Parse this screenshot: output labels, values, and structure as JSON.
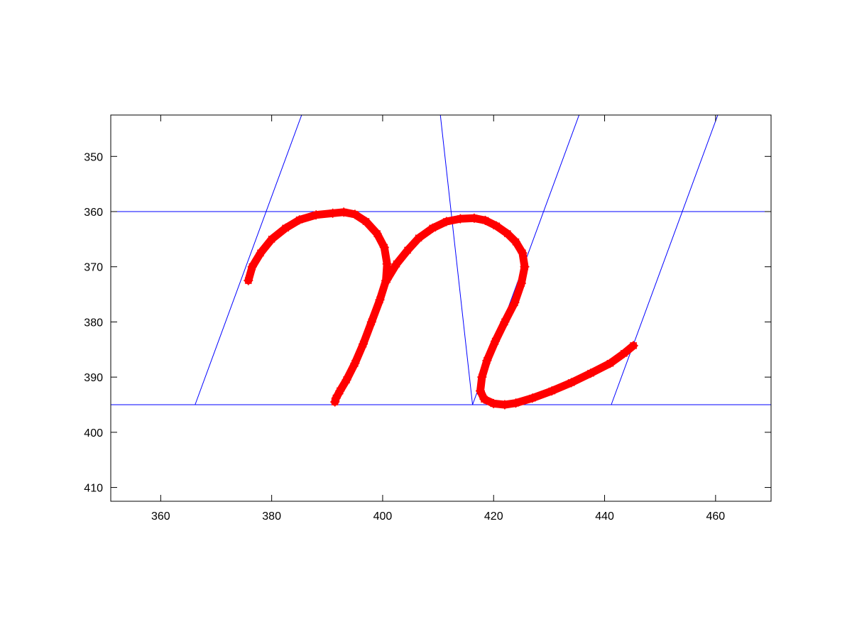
{
  "chart_data": {
    "type": "line",
    "title": "",
    "xlabel": "",
    "ylabel": "",
    "xlim": [
      351,
      470
    ],
    "ylim": [
      342.5,
      412.5
    ],
    "y_reversed": true,
    "grid": false,
    "legend": "none",
    "x_ticks": [
      360,
      380,
      400,
      420,
      440,
      460
    ],
    "y_ticks": [
      350,
      360,
      370,
      380,
      390,
      400,
      410
    ],
    "x_tick_labels": [
      "360",
      "380",
      "400",
      "420",
      "440",
      "460"
    ],
    "y_tick_labels": [
      "350",
      "360",
      "370",
      "380",
      "390",
      "400",
      "410"
    ],
    "colors": {
      "guides": "#0000ff",
      "stroke": "#ff0000",
      "axes": "#000000"
    },
    "series": [
      {
        "role": "guide-lines",
        "color": "#0000ff",
        "segments": [
          {
            "x": [
              351,
              470
            ],
            "y": [
              360,
              360
            ]
          },
          {
            "x": [
              351,
              470
            ],
            "y": [
              395,
              395
            ]
          },
          {
            "x": [
              366.2,
              385.4
            ],
            "y": [
              395,
              342.5
            ]
          },
          {
            "x": [
              416.2,
              410.4
            ],
            "y": [
              395,
              342.5
            ]
          },
          {
            "x": [
              416.2,
              435.4
            ],
            "y": [
              395,
              342.5
            ]
          },
          {
            "x": [
              441.2,
              460.4
            ],
            "y": [
              395,
              342.5
            ]
          }
        ]
      },
      {
        "role": "handwriting-stroke",
        "marker": "asterisk",
        "color": "#ff0000",
        "x": [
          375.8,
          376.5,
          378,
          380,
          382.5,
          385,
          388,
          391,
          393,
          395,
          397,
          399,
          400.3,
          400.8,
          400.6,
          399.5,
          398,
          396.5,
          395,
          393.5,
          392.3,
          391.6,
          391.4
        ],
        "y": [
          372.5,
          370,
          367.5,
          365,
          363,
          361.5,
          360.6,
          360.3,
          360.1,
          360.5,
          361.8,
          364,
          366.5,
          369.5,
          372.5,
          376,
          380,
          384,
          387.5,
          390.5,
          392.5,
          393.8,
          394.5
        ]
      },
      {
        "role": "handwriting-stroke",
        "marker": "asterisk",
        "color": "#ff0000",
        "x": [
          400.8,
          402.5,
          404.5,
          406.5,
          409,
          411.5,
          414,
          416.5,
          418.5,
          420.5,
          422.5,
          424,
          425.2,
          425.6,
          425,
          423.8,
          422,
          420.3,
          418.8,
          417.9,
          417.6,
          418.3,
          420,
          422,
          424,
          427,
          430.5,
          434,
          437.5,
          441,
          443.5,
          445.2
        ],
        "y": [
          372.3,
          369.5,
          367,
          364.8,
          363,
          361.8,
          361.3,
          361.2,
          361.6,
          362.6,
          364,
          365.5,
          367.5,
          370,
          373,
          376.5,
          380,
          383.5,
          387,
          390,
          392.5,
          394,
          394.8,
          395,
          394.7,
          393.8,
          392.5,
          391,
          389.3,
          387.5,
          385.7,
          384.3
        ]
      }
    ]
  }
}
